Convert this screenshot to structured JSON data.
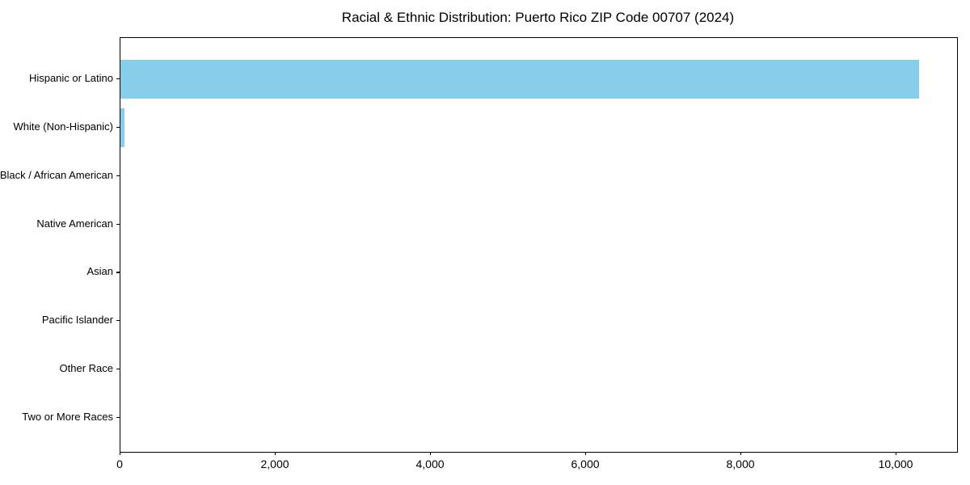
{
  "chart_data": {
    "type": "bar",
    "orientation": "horizontal",
    "title": "Racial & Ethnic Distribution: Puerto Rico ZIP Code 00707 (2024)",
    "categories": [
      "Hispanic or Latino",
      "White (Non-Hispanic)",
      "Black / African American",
      "Native American",
      "Asian",
      "Pacific Islander",
      "Other Race",
      "Two or More Races"
    ],
    "values": [
      10290,
      50,
      0,
      0,
      0,
      0,
      0,
      0
    ],
    "bar_color": "#87CEEB",
    "xlabel": "",
    "ylabel": "",
    "xlim": [
      0,
      10781
    ],
    "x_ticks": [
      0,
      2000,
      4000,
      6000,
      8000,
      10000
    ],
    "x_tick_labels": [
      "0",
      "2,000",
      "4,000",
      "6,000",
      "8,000",
      "10,000"
    ],
    "grid": false,
    "legend": null,
    "axis_color": "#000000",
    "background_color": "#ffffff"
  }
}
